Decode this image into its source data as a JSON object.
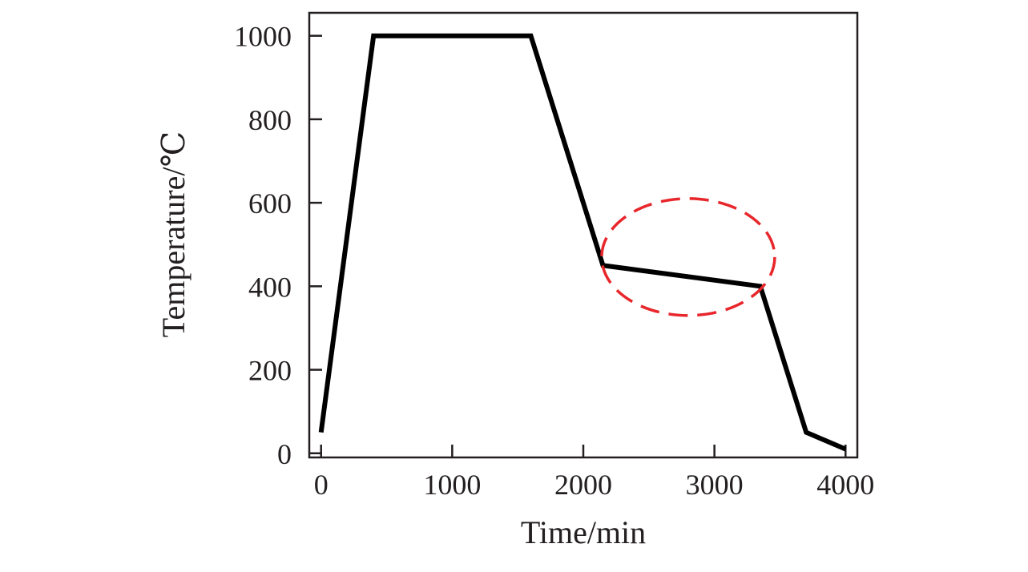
{
  "chart_data": {
    "type": "line",
    "title": "",
    "xlabel": "Time/min",
    "ylabel": "Temperature/℃",
    "xlim": [
      -90,
      4090
    ],
    "ylim": [
      -10,
      1055
    ],
    "x_ticks": [
      0,
      1000,
      2000,
      3000,
      4000
    ],
    "y_ticks": [
      0,
      200,
      400,
      600,
      800,
      1000
    ],
    "x_tick_labels": [
      "0",
      "1000",
      "2000",
      "3000",
      "4000"
    ],
    "y_tick_labels": [
      "0",
      "200",
      "400",
      "600",
      "800",
      "1000"
    ],
    "grid": false,
    "legend": "none",
    "series": [
      {
        "x": [
          0,
          400,
          1600,
          2150,
          3350,
          3700,
          4000
        ],
        "y": [
          50,
          1000,
          1000,
          450,
          400,
          50,
          10
        ]
      }
    ],
    "annotations": [
      {
        "type": "dashed-ellipse",
        "center_x": 2800,
        "center_y": 470,
        "radius_x": 660,
        "radius_y": 140
      }
    ],
    "colors": {
      "line": "#000000",
      "axis": "#231f20",
      "annotation": "#e8262b"
    }
  }
}
